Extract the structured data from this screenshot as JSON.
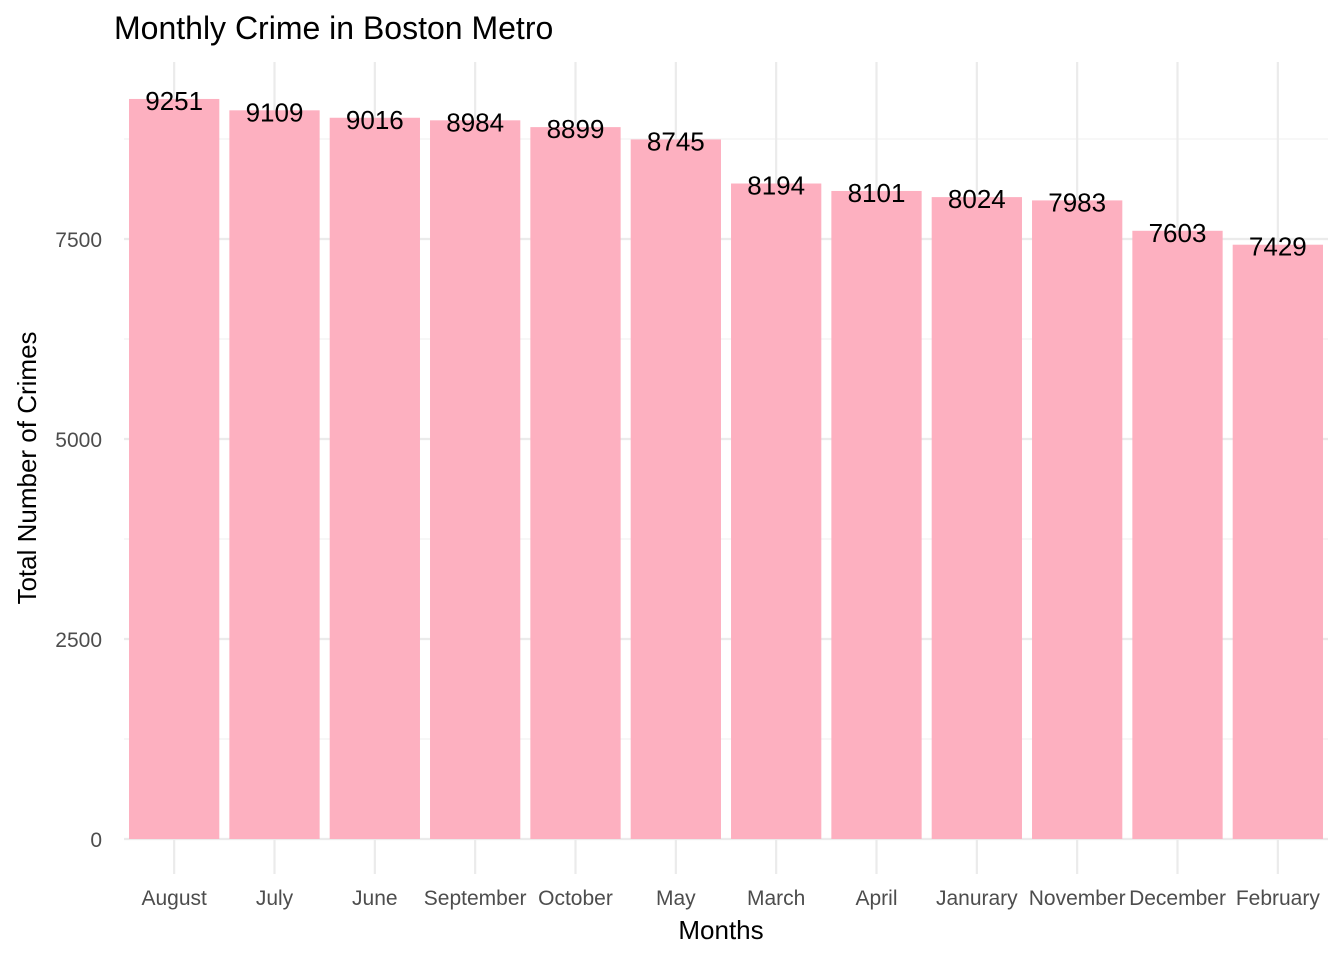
{
  "chart_data": {
    "type": "bar",
    "title": "Monthly Crime in Boston Metro",
    "xlabel": "Months",
    "ylabel": "Total Number of Crimes",
    "categories": [
      "August",
      "July",
      "June",
      "September",
      "October",
      "May",
      "March",
      "April",
      "Janurary",
      "November",
      "December",
      "February"
    ],
    "values": [
      9251,
      9109,
      9016,
      8984,
      8899,
      8745,
      8194,
      8101,
      8024,
      7983,
      7603,
      7429
    ],
    "y_ticks": [
      0,
      2500,
      5000,
      7500
    ],
    "ylim": [
      0,
      9713
    ],
    "bar_color": "#FDB0C0",
    "grid": true,
    "legend": "none"
  }
}
